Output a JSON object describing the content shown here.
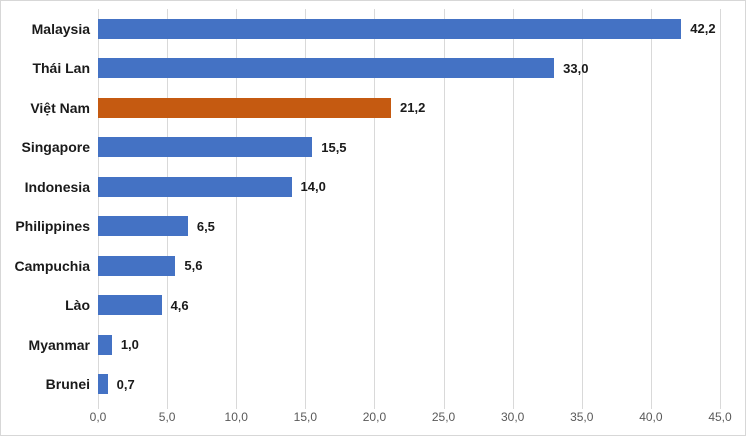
{
  "chart_data": {
    "type": "bar",
    "orientation": "horizontal",
    "title": "",
    "xlabel": "",
    "ylabel": "",
    "categories": [
      "Malaysia",
      "Thái Lan",
      "Việt Nam",
      "Singapore",
      "Indonesia",
      "Philippines",
      "Campuchia",
      "Lào",
      "Myanmar",
      "Brunei"
    ],
    "values": [
      42.2,
      33.0,
      21.2,
      15.5,
      14.0,
      6.5,
      5.6,
      4.6,
      1.0,
      0.7
    ],
    "value_labels": [
      "42,2",
      "33,0",
      "21,2",
      "15,5",
      "14,0",
      "6,5",
      "5,6",
      "4,6",
      "1,0",
      "0,7"
    ],
    "highlight_index": 2,
    "xlim": [
      0,
      45
    ],
    "xticks": [
      0,
      5,
      10,
      15,
      20,
      25,
      30,
      35,
      40,
      45
    ],
    "xtick_labels": [
      "0,0",
      "5,0",
      "10,0",
      "15,0",
      "20,0",
      "25,0",
      "30,0",
      "35,0",
      "40,0",
      "45,0"
    ],
    "grid": true,
    "legend": false,
    "colors": {
      "bar_default": "#4472C4",
      "bar_highlight": "#C55A11",
      "gridline": "#d9d9d9",
      "tick_label": "#595959",
      "text_label": "#1a1a1a",
      "chart_border": "#d7d7d7",
      "background": "#ffffff"
    }
  }
}
